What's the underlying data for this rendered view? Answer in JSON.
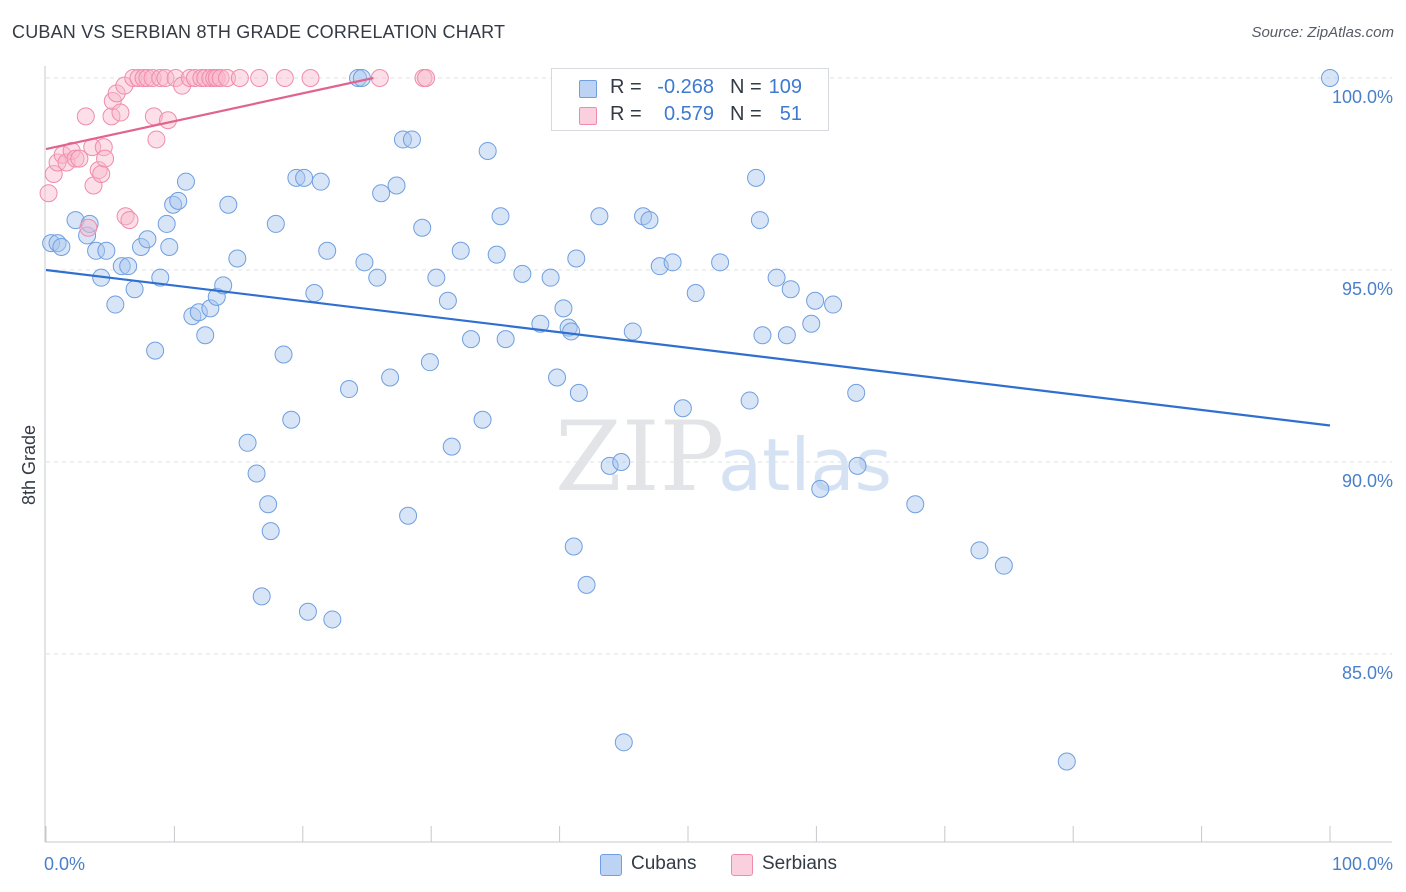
{
  "header": {
    "title": "CUBAN VS SERBIAN 8TH GRADE CORRELATION CHART",
    "source": "Source: ZipAtlas.com"
  },
  "watermark": {
    "zip": "ZIP",
    "atlas": "atlas"
  },
  "legend": {
    "cubans": {
      "r_label": "R =",
      "r_value": "-0.268",
      "n_label": "N =",
      "n_value": "109",
      "color": "#6f9fe0"
    },
    "serbians": {
      "r_label": "R =",
      "r_value": "0.579",
      "n_label": "N =",
      "n_value": "51",
      "color": "#f08caa"
    }
  },
  "bottom_legend": {
    "cubans": "Cubans",
    "serbians": "Serbians"
  },
  "chart_data": {
    "type": "scatter",
    "ylabel": "8th Grade",
    "xlabel": "",
    "x_tick_labels": [
      "0.0%",
      "100.0%"
    ],
    "y_tick_labels": [
      "85.0%",
      "90.0%",
      "95.0%",
      "100.0%"
    ],
    "y_ticks": [
      85,
      90,
      95,
      100
    ],
    "xlim": [
      0,
      100
    ],
    "ylim": [
      80.0,
      100.5
    ],
    "grid": true,
    "colors": {
      "cubans": "#6f9fe0",
      "serbians": "#f08caa",
      "cubans_line": "#2f6fd0",
      "serbians_line": "#e0648e"
    },
    "trendlines": [
      {
        "series": "Cubans",
        "x": [
          0,
          100
        ],
        "y": [
          95.0,
          90.95
        ]
      },
      {
        "series": "Serbians",
        "x": [
          0,
          25.5
        ],
        "y": [
          98.15,
          100.0
        ]
      }
    ],
    "series": [
      {
        "name": "Cubans",
        "points": [
          [
            0.4,
            95.7
          ],
          [
            0.9,
            95.7
          ],
          [
            1.2,
            95.6
          ],
          [
            2.3,
            96.3
          ],
          [
            3.2,
            95.9
          ],
          [
            3.4,
            96.2
          ],
          [
            3.9,
            95.5
          ],
          [
            4.3,
            94.8
          ],
          [
            4.7,
            95.5
          ],
          [
            5.4,
            94.1
          ],
          [
            5.9,
            95.1
          ],
          [
            6.4,
            95.1
          ],
          [
            6.9,
            94.5
          ],
          [
            7.4,
            95.6
          ],
          [
            7.9,
            95.8
          ],
          [
            8.5,
            92.9
          ],
          [
            8.9,
            94.8
          ],
          [
            9.4,
            96.2
          ],
          [
            9.6,
            95.6
          ],
          [
            9.9,
            96.7
          ],
          [
            10.3,
            96.8
          ],
          [
            10.9,
            97.3
          ],
          [
            11.4,
            93.8
          ],
          [
            11.9,
            93.9
          ],
          [
            12.4,
            93.3
          ],
          [
            12.8,
            94.0
          ],
          [
            13.3,
            94.3
          ],
          [
            13.8,
            94.6
          ],
          [
            14.2,
            96.7
          ],
          [
            14.9,
            95.3
          ],
          [
            15.7,
            90.5
          ],
          [
            16.4,
            89.7
          ],
          [
            16.8,
            86.5
          ],
          [
            17.3,
            88.9
          ],
          [
            17.5,
            88.2
          ],
          [
            17.9,
            96.2
          ],
          [
            18.5,
            92.8
          ],
          [
            19.1,
            91.1
          ],
          [
            19.5,
            97.4
          ],
          [
            20.1,
            97.4
          ],
          [
            20.4,
            86.1
          ],
          [
            20.9,
            94.4
          ],
          [
            21.4,
            97.3
          ],
          [
            21.9,
            95.5
          ],
          [
            22.3,
            85.9
          ],
          [
            24.3,
            100.0
          ],
          [
            23.6,
            91.9
          ],
          [
            24.6,
            100.0
          ],
          [
            24.8,
            95.2
          ],
          [
            25.8,
            94.8
          ],
          [
            26.1,
            97.0
          ],
          [
            26.8,
            92.2
          ],
          [
            27.3,
            97.2
          ],
          [
            27.8,
            98.4
          ],
          [
            28.2,
            88.6
          ],
          [
            28.5,
            98.4
          ],
          [
            29.3,
            96.1
          ],
          [
            29.9,
            92.6
          ],
          [
            30.4,
            94.8
          ],
          [
            31.3,
            94.2
          ],
          [
            31.6,
            90.4
          ],
          [
            32.3,
            95.5
          ],
          [
            33.1,
            93.2
          ],
          [
            34.0,
            91.1
          ],
          [
            34.4,
            98.1
          ],
          [
            35.1,
            95.4
          ],
          [
            35.4,
            96.4
          ],
          [
            35.8,
            93.2
          ],
          [
            37.1,
            94.9
          ],
          [
            38.5,
            93.6
          ],
          [
            39.3,
            94.8
          ],
          [
            39.8,
            92.2
          ],
          [
            40.3,
            94.0
          ],
          [
            40.7,
            93.5
          ],
          [
            40.9,
            93.4
          ],
          [
            41.1,
            87.8
          ],
          [
            41.5,
            91.8
          ],
          [
            42.1,
            86.8
          ],
          [
            43.1,
            96.4
          ],
          [
            43.9,
            89.9
          ],
          [
            44.8,
            90.0
          ],
          [
            45.0,
            82.7
          ],
          [
            45.7,
            93.4
          ],
          [
            46.5,
            96.4
          ],
          [
            47.0,
            96.3
          ],
          [
            47.8,
            95.1
          ],
          [
            48.8,
            95.2
          ],
          [
            49.6,
            91.4
          ],
          [
            50.6,
            94.4
          ],
          [
            52.5,
            95.2
          ],
          [
            54.8,
            91.6
          ],
          [
            55.3,
            97.4
          ],
          [
            55.6,
            96.3
          ],
          [
            55.8,
            93.3
          ],
          [
            56.9,
            94.8
          ],
          [
            57.7,
            93.3
          ],
          [
            58.0,
            94.5
          ],
          [
            59.6,
            93.6
          ],
          [
            59.9,
            94.2
          ],
          [
            60.3,
            89.3
          ],
          [
            61.3,
            94.1
          ],
          [
            63.1,
            91.8
          ],
          [
            63.2,
            89.9
          ],
          [
            67.7,
            88.9
          ],
          [
            72.7,
            87.7
          ],
          [
            74.6,
            87.3
          ],
          [
            79.5,
            82.2
          ],
          [
            100.0,
            100.0
          ],
          [
            41.3,
            95.3
          ]
        ]
      },
      {
        "name": "Serbians",
        "points": [
          [
            0.2,
            97.0
          ],
          [
            0.6,
            97.5
          ],
          [
            0.9,
            97.8
          ],
          [
            1.3,
            98.0
          ],
          [
            1.6,
            97.8
          ],
          [
            2.0,
            98.1
          ],
          [
            2.3,
            97.9
          ],
          [
            2.6,
            97.9
          ],
          [
            3.1,
            99.0
          ],
          [
            3.3,
            96.1
          ],
          [
            3.6,
            98.2
          ],
          [
            3.7,
            97.2
          ],
          [
            4.1,
            97.6
          ],
          [
            4.3,
            97.5
          ],
          [
            4.5,
            98.2
          ],
          [
            4.6,
            97.9
          ],
          [
            5.1,
            99.0
          ],
          [
            5.2,
            99.4
          ],
          [
            5.5,
            99.6
          ],
          [
            5.8,
            99.1
          ],
          [
            6.1,
            99.8
          ],
          [
            6.2,
            96.4
          ],
          [
            6.5,
            96.3
          ],
          [
            6.8,
            100.0
          ],
          [
            7.2,
            100.0
          ],
          [
            7.6,
            100.0
          ],
          [
            7.9,
            100.0
          ],
          [
            8.3,
            100.0
          ],
          [
            8.4,
            99.0
          ],
          [
            8.6,
            98.4
          ],
          [
            8.9,
            100.0
          ],
          [
            9.3,
            100.0
          ],
          [
            9.5,
            98.9
          ],
          [
            10.1,
            100.0
          ],
          [
            10.6,
            99.8
          ],
          [
            11.2,
            100.0
          ],
          [
            11.6,
            100.0
          ],
          [
            12.1,
            100.0
          ],
          [
            12.4,
            100.0
          ],
          [
            12.8,
            100.0
          ],
          [
            13.1,
            100.0
          ],
          [
            13.3,
            100.0
          ],
          [
            13.6,
            100.0
          ],
          [
            14.1,
            100.0
          ],
          [
            15.1,
            100.0
          ],
          [
            16.6,
            100.0
          ],
          [
            18.6,
            100.0
          ],
          [
            20.6,
            100.0
          ],
          [
            26.0,
            100.0
          ],
          [
            29.4,
            100.0
          ],
          [
            29.6,
            100.0
          ]
        ]
      }
    ]
  }
}
